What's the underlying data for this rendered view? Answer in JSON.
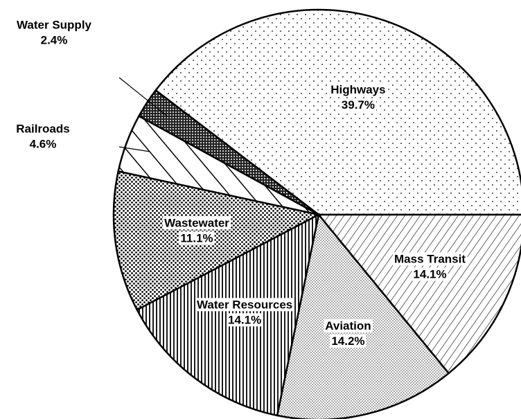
{
  "chart_data": {
    "type": "pie",
    "categories": [
      "Highways",
      "Water Supply",
      "Railroads",
      "Wastewater",
      "Water Resources",
      "Aviation",
      "Mass Transit"
    ],
    "values": [
      39.7,
      2.4,
      4.6,
      11.1,
      14.1,
      14.2,
      14.1
    ],
    "value_labels": [
      "39.7%",
      "2.4%",
      "4.6%",
      "11.1%",
      "14.1%",
      "14.2%",
      "14.1%"
    ]
  }
}
